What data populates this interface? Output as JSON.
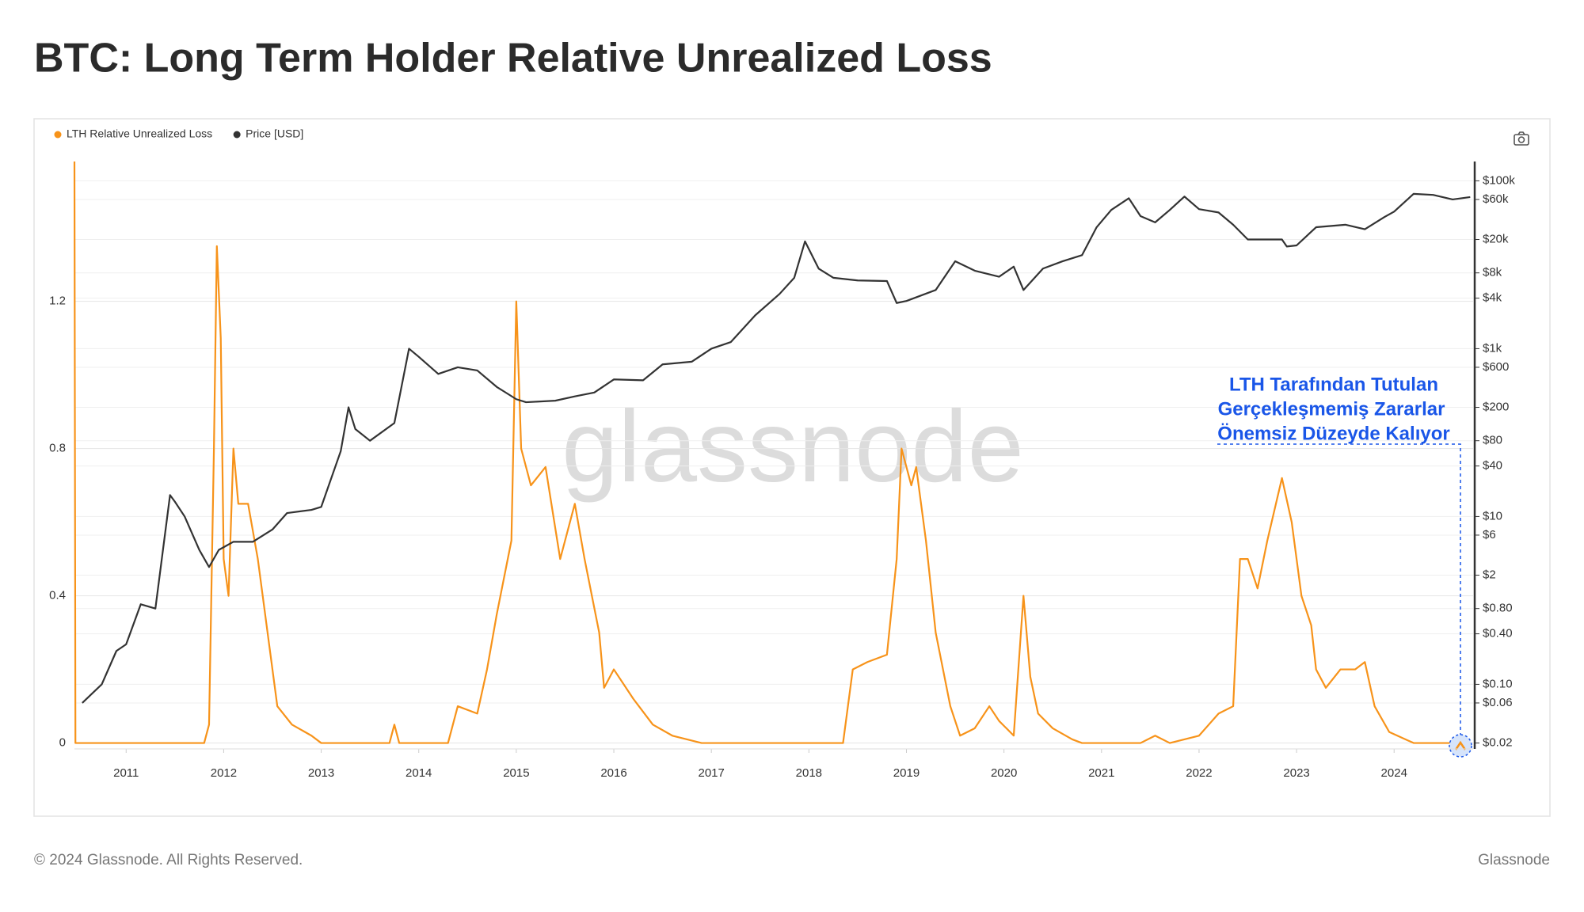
{
  "chart_data": {
    "type": "line",
    "title": "BTC: Long Term Holder Relative Unrealized Loss",
    "watermark": "glassnode",
    "annotation": [
      "LTH Tarafından Tutulan",
      "Gerçekleşmemiş Zararlar",
      "Önemsiz Düzeyde Kalıyor"
    ],
    "footer_left": "© 2024 Glassnode. All Rights Reserved.",
    "footer_right": "Glassnode",
    "grid": true,
    "legend": "top-left",
    "xlim": [
      2010.47,
      2024.81
    ],
    "xticks": [
      2011,
      2012,
      2013,
      2014,
      2015,
      2016,
      2017,
      2018,
      2019,
      2020,
      2021,
      2022,
      2023,
      2024
    ],
    "ylim": [
      -0.016,
      1.58
    ],
    "yticks": [
      0,
      0.4,
      0.8,
      1.2
    ],
    "y2scale": "log",
    "y2lim": [
      0.017,
      170000
    ],
    "y2ticks": [
      {
        "value": 100000,
        "label": "$100k"
      },
      {
        "value": 60000,
        "label": "$60k"
      },
      {
        "value": 20000,
        "label": "$20k"
      },
      {
        "value": 8000,
        "label": "$8k"
      },
      {
        "value": 4000,
        "label": "$4k"
      },
      {
        "value": 1000,
        "label": "$1k"
      },
      {
        "value": 600,
        "label": "$600"
      },
      {
        "value": 200,
        "label": "$200"
      },
      {
        "value": 80,
        "label": "$80"
      },
      {
        "value": 40,
        "label": "$40"
      },
      {
        "value": 10,
        "label": "$10"
      },
      {
        "value": 6,
        "label": "$6"
      },
      {
        "value": 2,
        "label": "$2"
      },
      {
        "value": 0.8,
        "label": "$0.80"
      },
      {
        "value": 0.4,
        "label": "$0.40"
      },
      {
        "value": 0.1,
        "label": "$0.10"
      },
      {
        "value": 0.06,
        "label": "$0.06"
      },
      {
        "value": 0.02,
        "label": "$0.02"
      }
    ],
    "series": [
      {
        "name": "LTH Relative Unrealized Loss",
        "color": "#f7931a",
        "axis": "y",
        "x": [
          2010.47,
          2010.48,
          2011.8,
          2011.85,
          2011.9,
          2011.93,
          2011.97,
          2012.0,
          2012.05,
          2012.1,
          2012.15,
          2012.25,
          2012.35,
          2012.45,
          2012.55,
          2012.7,
          2012.9,
          2013.0,
          2013.7,
          2013.75,
          2013.8,
          2014.3,
          2014.4,
          2014.6,
          2014.7,
          2014.8,
          2014.95,
          2015.0,
          2015.05,
          2015.15,
          2015.3,
          2015.45,
          2015.6,
          2015.7,
          2015.85,
          2015.9,
          2016.0,
          2016.2,
          2016.4,
          2016.6,
          2016.9,
          2018.35,
          2018.45,
          2018.6,
          2018.8,
          2018.9,
          2018.95,
          2019.05,
          2019.1,
          2019.2,
          2019.3,
          2019.45,
          2019.55,
          2019.7,
          2019.85,
          2019.95,
          2020.1,
          2020.2,
          2020.27,
          2020.35,
          2020.5,
          2020.7,
          2020.8,
          2021.4,
          2021.55,
          2021.7,
          2022.0,
          2022.2,
          2022.35,
          2022.42,
          2022.5,
          2022.6,
          2022.7,
          2022.85,
          2022.95,
          2023.05,
          2023.15,
          2023.2,
          2023.3,
          2023.45,
          2023.6,
          2023.7,
          2023.8,
          2023.95,
          2024.2,
          2024.78
        ],
        "values": [
          1.58,
          0,
          0,
          0.05,
          0.8,
          1.35,
          1.1,
          0.5,
          0.4,
          0.8,
          0.65,
          0.65,
          0.5,
          0.3,
          0.1,
          0.05,
          0.02,
          0,
          0,
          0.05,
          0,
          0,
          0.1,
          0.08,
          0.2,
          0.35,
          0.55,
          1.2,
          0.8,
          0.7,
          0.75,
          0.5,
          0.65,
          0.5,
          0.3,
          0.15,
          0.2,
          0.12,
          0.05,
          0.02,
          0,
          0,
          0.2,
          0.22,
          0.24,
          0.5,
          0.8,
          0.7,
          0.75,
          0.55,
          0.3,
          0.1,
          0.02,
          0.04,
          0.1,
          0.06,
          0.02,
          0.4,
          0.18,
          0.08,
          0.04,
          0.01,
          0,
          0,
          0.02,
          0,
          0.02,
          0.08,
          0.1,
          0.5,
          0.5,
          0.42,
          0.55,
          0.72,
          0.6,
          0.4,
          0.32,
          0.2,
          0.15,
          0.2,
          0.2,
          0.22,
          0.1,
          0.03,
          0,
          0
        ]
      },
      {
        "name": "Price [USD]",
        "color": "#333333",
        "axis": "y2",
        "x": [
          2010.55,
          2010.75,
          2010.9,
          2011.0,
          2011.15,
          2011.3,
          2011.45,
          2011.5,
          2011.6,
          2011.75,
          2011.85,
          2011.95,
          2012.1,
          2012.3,
          2012.5,
          2012.65,
          2012.9,
          2013.0,
          2013.2,
          2013.28,
          2013.35,
          2013.5,
          2013.75,
          2013.9,
          2014.0,
          2014.2,
          2014.4,
          2014.6,
          2014.8,
          2015.0,
          2015.1,
          2015.4,
          2015.6,
          2015.8,
          2016.0,
          2016.3,
          2016.5,
          2016.8,
          2017.0,
          2017.2,
          2017.45,
          2017.7,
          2017.85,
          2017.96,
          2018.1,
          2018.25,
          2018.5,
          2018.8,
          2018.9,
          2019.0,
          2019.3,
          2019.5,
          2019.7,
          2019.95,
          2020.1,
          2020.2,
          2020.4,
          2020.6,
          2020.8,
          2020.95,
          2021.1,
          2021.28,
          2021.4,
          2021.55,
          2021.7,
          2021.85,
          2022.0,
          2022.2,
          2022.35,
          2022.5,
          2022.85,
          2022.9,
          2023.0,
          2023.2,
          2023.5,
          2023.7,
          2023.9,
          2024.0,
          2024.2,
          2024.4,
          2024.6,
          2024.78
        ],
        "values": [
          0.06,
          0.1,
          0.25,
          0.3,
          0.9,
          0.8,
          18,
          15,
          10,
          4,
          2.5,
          4,
          5,
          5,
          7,
          11,
          12,
          13,
          60,
          200,
          110,
          80,
          130,
          1000,
          800,
          500,
          600,
          550,
          350,
          250,
          230,
          240,
          270,
          300,
          430,
          420,
          650,
          700,
          1000,
          1200,
          2500,
          4500,
          7000,
          19000,
          9000,
          7000,
          6500,
          6400,
          3500,
          3700,
          5000,
          11000,
          8500,
          7200,
          9500,
          5000,
          9000,
          11000,
          13000,
          28000,
          45000,
          62000,
          38000,
          32000,
          45000,
          65000,
          46000,
          42000,
          30000,
          20000,
          20000,
          16500,
          17000,
          28000,
          30000,
          26500,
          37000,
          43000,
          70000,
          68000,
          60000,
          64000
        ]
      }
    ]
  }
}
